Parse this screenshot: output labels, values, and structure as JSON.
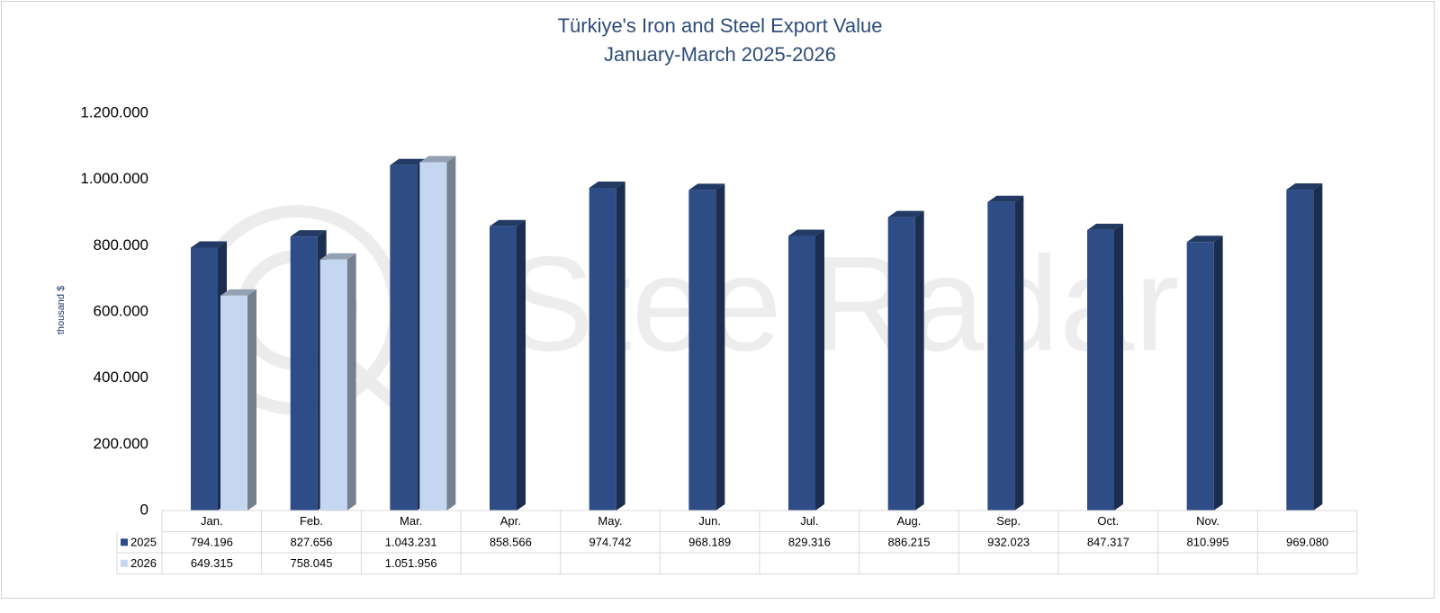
{
  "chart_data": {
    "type": "bar3d",
    "title": "Türkiye's Iron and Steel Export Value",
    "subtitle": "January-March 2025-2026",
    "y_label": "thousand $",
    "watermark": "SteelRadar",
    "categories": [
      "Jan.",
      "Feb.",
      "Mar.",
      "Apr.",
      "May.",
      "Jun.",
      "Jul.",
      "Aug.",
      "Sep.",
      "Oct.",
      "Nov.",
      null
    ],
    "series": [
      {
        "name": "2025",
        "color": "#2e4d86",
        "values": [
          794196,
          827656,
          1043231,
          858566,
          974742,
          968189,
          829316,
          886215,
          932023,
          847317,
          810995,
          969080
        ],
        "value_labels": [
          "794.196",
          "827.656",
          "1.043.231",
          "858.566",
          "974.742",
          "968.189",
          "829.316",
          "886.215",
          "932.023",
          "847.317",
          "810.995",
          "969.080"
        ]
      },
      {
        "name": "2026",
        "color": "#c5d7f0",
        "values": [
          649315,
          758045,
          1051956,
          null,
          null,
          null,
          null,
          null,
          null,
          null,
          null,
          null
        ],
        "value_labels": [
          "649.315",
          "758.045",
          "1.051.956",
          null,
          null,
          null,
          null,
          null,
          null,
          null,
          null,
          null
        ]
      }
    ],
    "ylim": [
      0,
      1200000
    ],
    "yticks": [
      0,
      {
        "value": 200000,
        "label": "200.000"
      },
      {
        "value": 400000,
        "label": "400.000"
      },
      {
        "value": 600000,
        "label": "600.000"
      },
      {
        "value": 800000,
        "label": "800.000"
      },
      {
        "value": 1000000,
        "label": "1.000.000"
      },
      {
        "value": 1200000,
        "label": "1.200.000"
      }
    ],
    "data_table": true
  }
}
